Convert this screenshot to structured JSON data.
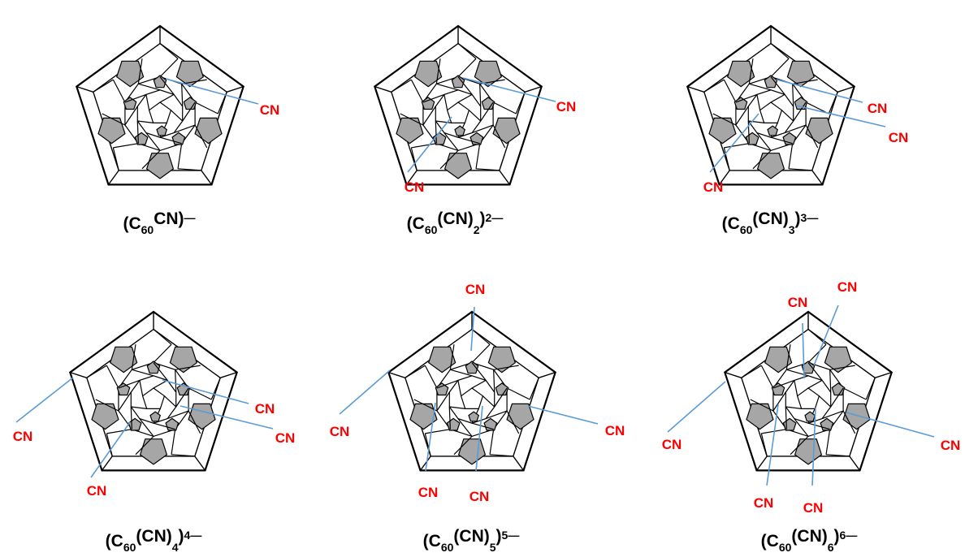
{
  "colors": {
    "bond_line": "#5b9bd5",
    "cn_label": "#ff0000",
    "shaded_face": "#a6a6a6",
    "outline": "#000000"
  },
  "panels": [
    {
      "caption": {
        "open": "(C",
        "sub1": "60",
        "mid": "CN)",
        "sub2": "",
        "close": "",
        "sup": "—"
      },
      "substituents": [
        {
          "label": "CN"
        }
      ]
    },
    {
      "caption": {
        "open": "(C",
        "sub1": "60",
        "mid": "(CN)",
        "sub2": "2",
        "close": "",
        "sup": "2—",
        "tail": ")"
      },
      "substituents": [
        {
          "label": "CN"
        },
        {
          "label": "CN"
        }
      ]
    },
    {
      "caption": {
        "open": "(C",
        "sub1": "60",
        "mid": "(CN)",
        "sub2": "3",
        "close": "",
        "sup": "3—",
        "tail": ")"
      },
      "substituents": [
        {
          "label": "CN"
        },
        {
          "label": "CN"
        },
        {
          "label": "CN"
        }
      ]
    },
    {
      "caption": {
        "open": "(C",
        "sub1": "60",
        "mid": "(CN)",
        "sub2": "4",
        "close": "",
        "sup": "4—",
        "tail": ")"
      },
      "substituents": [
        {
          "label": "CN"
        },
        {
          "label": "CN"
        },
        {
          "label": "CN"
        },
        {
          "label": "CN"
        }
      ]
    },
    {
      "caption": {
        "open": "(C",
        "sub1": "60",
        "mid": "(CN)",
        "sub2": "5",
        "close": "",
        "sup": "5—",
        "tail": ")"
      },
      "substituents": [
        {
          "label": "CN"
        },
        {
          "label": "CN"
        },
        {
          "label": "CN"
        },
        {
          "label": "CN"
        },
        {
          "label": "CN"
        }
      ]
    },
    {
      "caption": {
        "open": "(C",
        "sub1": "60",
        "mid": "(CN)",
        "sub2": "6",
        "close": "",
        "sup": "6—",
        "tail": ")"
      },
      "substituents": [
        {
          "label": "CN"
        },
        {
          "label": "CN"
        },
        {
          "label": "CN"
        },
        {
          "label": "CN"
        },
        {
          "label": "CN"
        },
        {
          "label": "CN"
        }
      ]
    }
  ]
}
